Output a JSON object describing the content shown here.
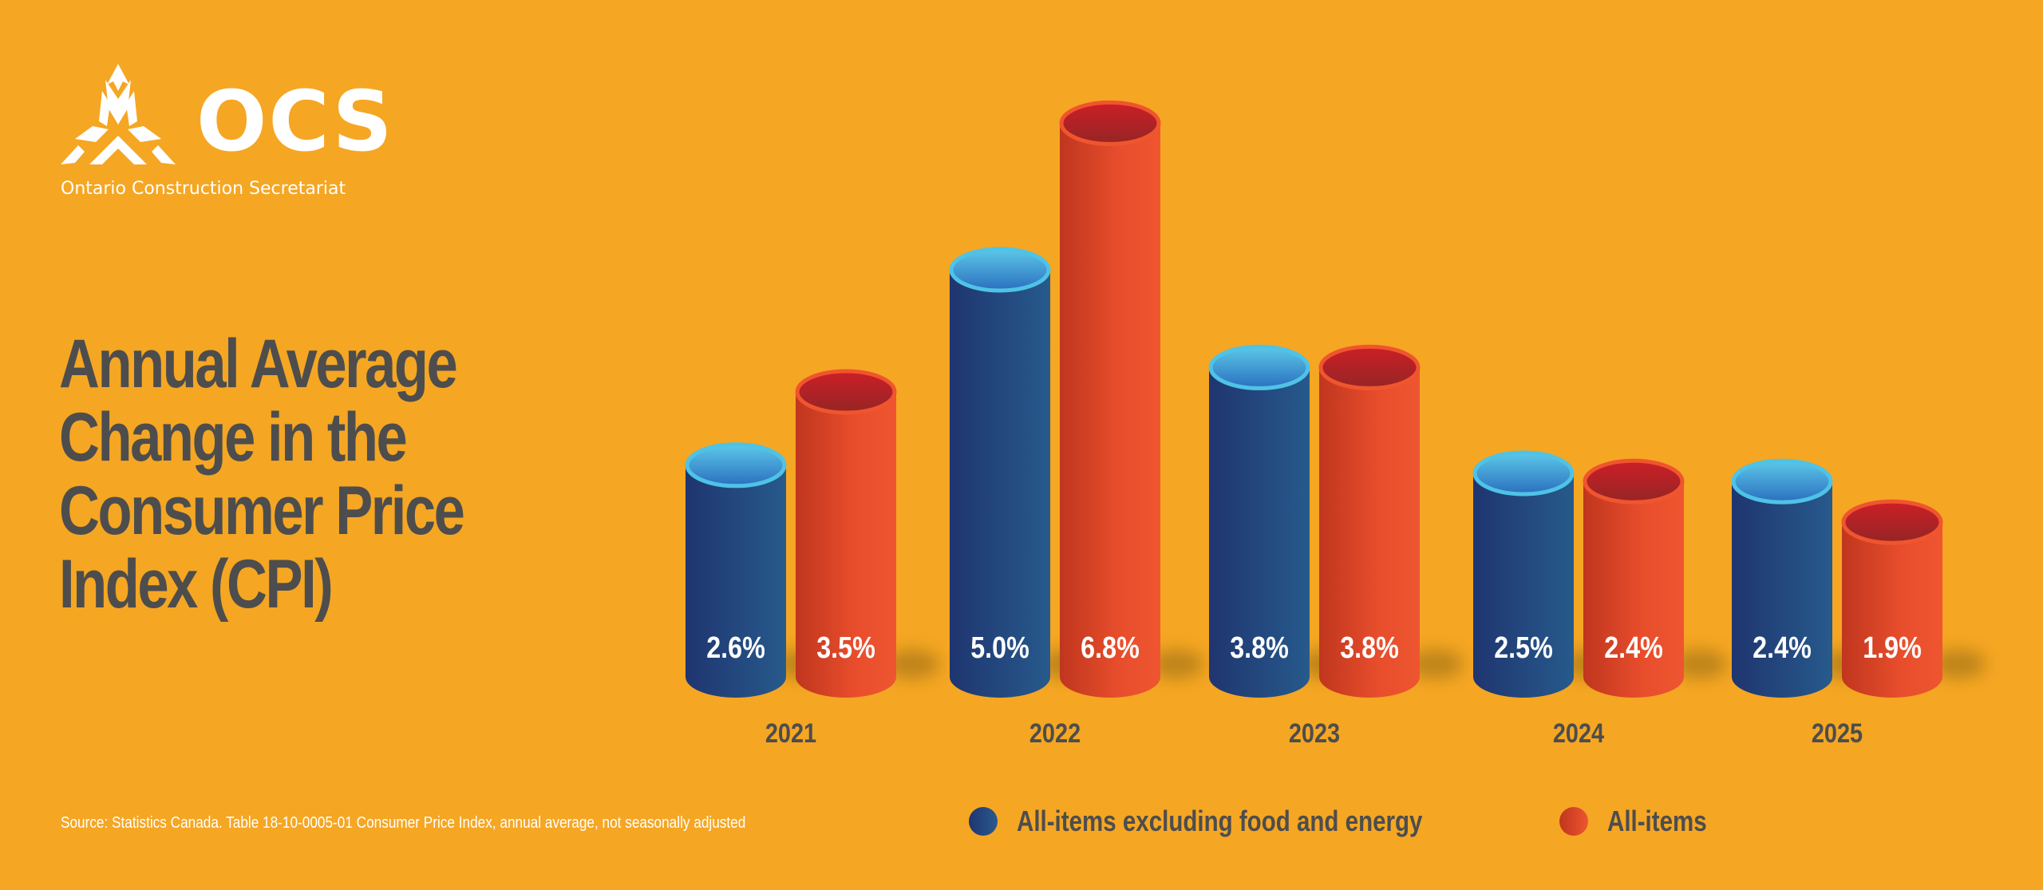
{
  "brand": {
    "logo_text": "OCS",
    "org_name": "Ontario Construction Secretariat",
    "logo_icon": "ocs-triangle-logo-icon"
  },
  "title_lines": [
    "Annual Average",
    "Change in the",
    "Consumer Price",
    "Index (CPI)"
  ],
  "source": "Source: Statistics Canada. Table 18-10-0005-01  Consumer Price Index, annual average, not seasonally adjusted",
  "colors": {
    "background": "#F5A623",
    "series_blue": "#24467E",
    "series_red": "#E34A2A",
    "text_dark": "#4D4D4D"
  },
  "legend": [
    {
      "label": "All-items excluding food and energy",
      "color": "#24467E"
    },
    {
      "label": "All-items",
      "color": "#E34A2A"
    }
  ],
  "chart_data": {
    "type": "bar",
    "title": "Annual Average Change in the Consumer Price Index (CPI)",
    "xlabel": "",
    "ylabel": "",
    "categories": [
      "2021",
      "2022",
      "2023",
      "2024",
      "2025"
    ],
    "series": [
      {
        "name": "All-items excluding food and energy",
        "values": [
          2.6,
          5.0,
          3.8,
          2.5,
          2.4
        ],
        "labels": [
          "2.6%",
          "5.0%",
          "3.8%",
          "2.5%",
          "2.4%"
        ]
      },
      {
        "name": "All-items",
        "values": [
          3.5,
          6.8,
          3.8,
          2.4,
          1.9
        ],
        "labels": [
          "3.5%",
          "6.8%",
          "3.8%",
          "2.4%",
          "1.9%"
        ]
      }
    ],
    "ylim": [
      0,
      6.8
    ],
    "grid": false,
    "legend_position": "bottom",
    "style": "3d-cylinder"
  }
}
